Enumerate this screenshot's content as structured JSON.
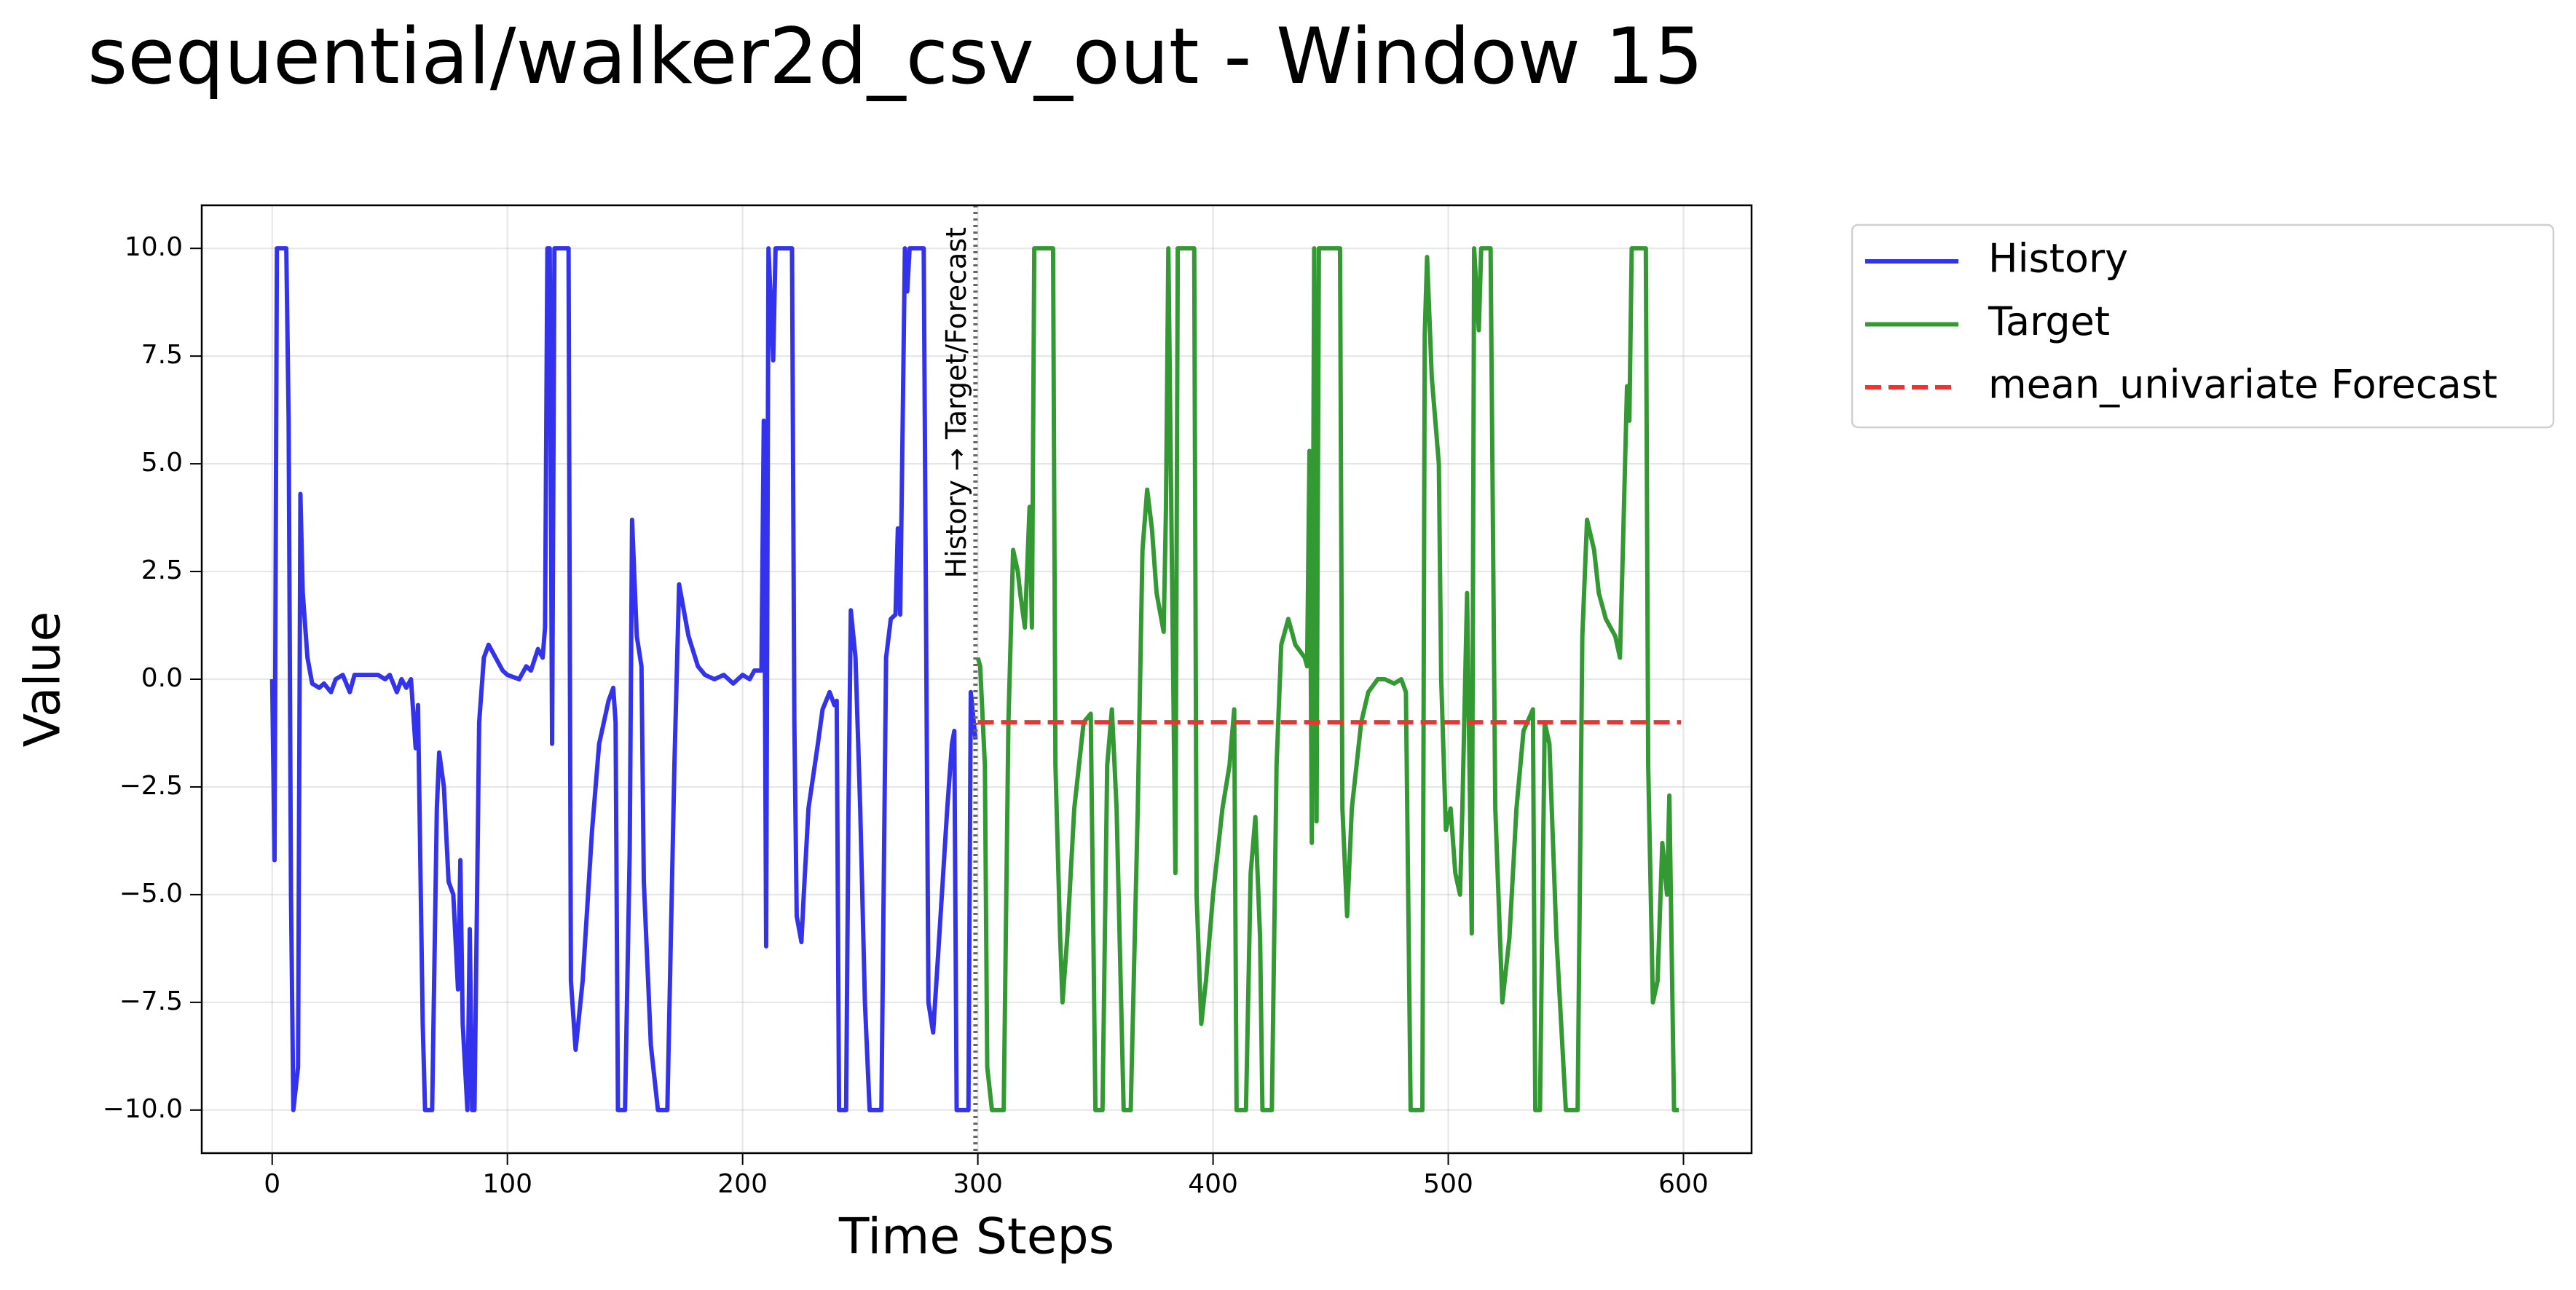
{
  "chart_data": {
    "type": "line",
    "title": "sequential/walker2d_csv_out - Window 15",
    "x_label": "Time Steps",
    "y_label": "Value",
    "xlim": [
      -29.95,
      628.95
    ],
    "ylim": [
      -11,
      11
    ],
    "xticks": [
      0,
      100,
      200,
      300,
      400,
      500,
      600
    ],
    "yticks": [
      {
        "value": -10,
        "label": "−10.0"
      },
      {
        "value": -7.5,
        "label": "−7.5"
      },
      {
        "value": -5,
        "label": "−5.0"
      },
      {
        "value": -2.5,
        "label": "−2.5"
      },
      {
        "value": 0,
        "label": "0.0"
      },
      {
        "value": 2.5,
        "label": "2.5"
      },
      {
        "value": 5,
        "label": "5.0"
      },
      {
        "value": 7.5,
        "label": "7.5"
      },
      {
        "value": 10,
        "label": "10.0"
      }
    ],
    "grid": true,
    "legend": "outside upper right",
    "annotation": {
      "text": "History → Target/Forecast",
      "x": 299,
      "color": "#666666"
    },
    "series": [
      {
        "name": "History",
        "color": "#3333ee",
        "linestyle": "solid",
        "x": [
          0,
          1,
          2,
          6,
          7,
          8,
          9,
          11,
          12,
          13,
          15,
          17,
          20,
          22,
          25,
          27,
          30,
          33,
          35,
          40,
          45,
          48,
          50,
          53,
          55,
          57,
          59,
          61,
          62,
          64,
          65,
          68,
          70,
          71,
          73,
          75,
          77,
          79,
          80,
          81,
          83,
          84,
          85,
          86,
          88,
          90,
          92,
          95,
          98,
          100,
          105,
          108,
          110,
          113,
          115,
          116,
          117,
          118,
          119,
          120,
          126,
          127,
          129,
          132,
          136,
          139,
          143,
          145,
          146,
          147,
          150,
          152,
          153,
          155,
          157,
          158,
          161,
          164,
          168,
          171,
          173,
          175,
          177,
          181,
          184,
          188,
          192,
          196,
          200,
          203,
          205,
          208,
          209,
          210,
          211,
          213,
          214,
          221,
          222,
          223,
          225,
          226,
          228,
          232,
          234,
          237,
          239,
          240,
          241,
          244,
          245,
          246,
          248,
          250,
          252,
          254,
          259,
          261,
          263,
          265,
          266,
          267,
          269,
          270,
          271,
          277,
          279,
          281,
          283,
          287,
          289,
          290,
          291,
          296,
          297,
          299
        ],
        "values": [
          0,
          -4.2,
          10,
          10,
          6,
          -5,
          -10,
          -9,
          4.3,
          2,
          0.5,
          -0.1,
          -0.2,
          -0.1,
          -0.3,
          0,
          0.1,
          -0.3,
          0.1,
          0.1,
          0.1,
          0,
          0.1,
          -0.3,
          0,
          -0.2,
          0,
          -1.6,
          -0.6,
          -8,
          -10,
          -10,
          -3,
          -1.7,
          -2.5,
          -4.7,
          -5,
          -7.2,
          -4.2,
          -8,
          -10,
          -5.8,
          -10,
          -10,
          -1,
          0.5,
          0.8,
          0.5,
          0.2,
          0.1,
          0,
          0.3,
          0.2,
          0.7,
          0.5,
          1.2,
          10,
          10,
          -1.5,
          10,
          10,
          -7,
          -8.6,
          -7,
          -3.5,
          -1.5,
          -0.5,
          -0.2,
          -1,
          -10,
          -10,
          -4,
          3.7,
          1,
          0.3,
          -4.7,
          -8.5,
          -10,
          -10,
          -2,
          2.2,
          1.6,
          1,
          0.3,
          0.1,
          0,
          0.1,
          -0.1,
          0.1,
          0,
          0.2,
          0.2,
          6,
          -6.2,
          10,
          7.4,
          10,
          10,
          -1,
          -5.5,
          -6.1,
          -5,
          -3,
          -1.5,
          -0.7,
          -0.3,
          -0.6,
          -0.5,
          -10,
          -10,
          -3,
          1.6,
          0.5,
          -3,
          -7.5,
          -10,
          -10,
          0.5,
          1.4,
          1.5,
          3.5,
          1.5,
          10,
          9,
          10,
          10,
          -7.5,
          -8.2,
          -6.5,
          -3,
          -1.5,
          -1.2,
          -10,
          -10,
          -0.3,
          -1.4
        ]
      },
      {
        "name": "Target",
        "color": "#339933",
        "linestyle": "solid",
        "x": [
          300,
          301,
          303,
          304,
          306,
          311,
          313,
          315,
          317,
          318,
          320,
          322,
          323,
          324,
          332,
          333,
          335,
          336,
          338,
          341,
          345,
          348,
          350,
          353,
          355,
          357,
          359,
          362,
          365,
          368,
          370,
          372,
          374,
          376,
          379,
          380,
          381,
          384,
          385,
          392,
          393,
          395,
          397,
          400,
          404,
          407,
          409,
          410,
          414,
          416,
          418,
          420,
          421,
          425,
          427,
          429,
          432,
          435,
          439,
          440,
          441,
          442,
          443,
          444,
          445,
          454,
          455,
          457,
          459,
          463,
          466,
          470,
          473,
          477,
          480,
          482,
          484,
          489,
          490,
          491,
          493,
          496,
          497,
          499,
          501,
          503,
          505,
          506,
          508,
          510,
          511,
          513,
          514,
          518,
          520,
          523,
          526,
          529,
          532,
          536,
          537,
          539,
          541,
          543,
          546,
          550,
          555,
          557,
          559,
          562,
          564,
          567,
          571,
          573,
          574,
          576,
          577,
          578,
          584,
          585,
          587,
          589,
          591,
          593,
          594,
          596,
          598
        ],
        "values": [
          0.5,
          0.3,
          -2,
          -9,
          -10,
          -10,
          -1,
          3,
          2.5,
          2,
          1.2,
          4,
          1.2,
          10,
          10,
          -2,
          -6,
          -7.5,
          -6,
          -3,
          -1,
          -0.8,
          -10,
          -10,
          -2,
          -0.7,
          -3,
          -10,
          -10,
          -3,
          3,
          4.4,
          3.5,
          2,
          1.1,
          4,
          10,
          -4.5,
          10,
          10,
          -5,
          -8,
          -7,
          -5,
          -3,
          -2,
          -0.7,
          -10,
          -10,
          -4.5,
          -3.2,
          -6,
          -10,
          -10,
          -2,
          0.8,
          1.4,
          0.8,
          0.5,
          0.3,
          5.3,
          -3.8,
          10,
          -3.3,
          10,
          10,
          -3,
          -5.5,
          -3,
          -1,
          -0.3,
          0,
          0,
          -0.1,
          0,
          -0.3,
          -10,
          -10,
          8,
          9.8,
          7,
          5,
          0,
          -3.5,
          -3,
          -4.5,
          -5,
          -3,
          2,
          -5.9,
          10,
          8.1,
          10,
          10,
          -3,
          -7.5,
          -6,
          -3,
          -1.2,
          -0.7,
          -10,
          -10,
          -1,
          -1.5,
          -6,
          -10,
          -10,
          1,
          3.7,
          3,
          2,
          1.4,
          1,
          0.5,
          2.5,
          6.8,
          6,
          10,
          10,
          -2,
          -7.5,
          -7,
          -3.8,
          -5,
          -2.7,
          -10,
          -10
        ]
      },
      {
        "name": "mean_univariate Forecast",
        "color": "#ee3333",
        "linestyle": "dashed",
        "x": [
          300,
          599
        ],
        "values": [
          -1,
          -1
        ]
      }
    ]
  }
}
